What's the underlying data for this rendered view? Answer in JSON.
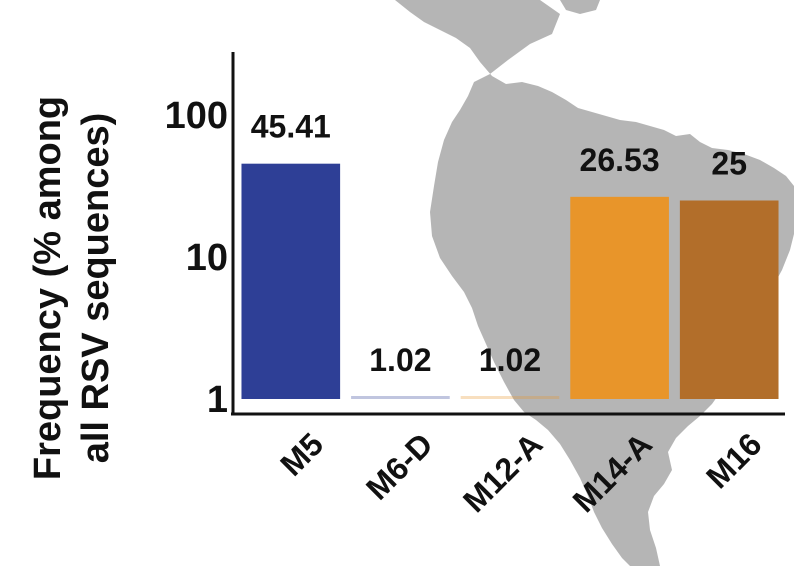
{
  "chart_data": {
    "type": "bar",
    "title": "",
    "xlabel": "",
    "ylabel_lines": [
      "Frequency (% among",
      "all RSV sequences)"
    ],
    "yscale": "log",
    "ylim": [
      1,
      250
    ],
    "yticks": [
      {
        "value": 1,
        "label": "1"
      },
      {
        "value": 10,
        "label": "10"
      },
      {
        "value": 100,
        "label": "100"
      }
    ],
    "categories": [
      "M5",
      "M6-D",
      "M12-A",
      "M14-A",
      "M16"
    ],
    "values": [
      45.41,
      1.02,
      1.02,
      26.53,
      25
    ],
    "value_labels": [
      "45.41",
      "1.02",
      "1.02",
      "26.53",
      "25"
    ],
    "colors": [
      "#2E3F96",
      "#2E3F96",
      "#E8952A",
      "#E8952A",
      "#B26E2A"
    ],
    "grid": false,
    "legend": "none"
  },
  "background": {
    "map_icon": "south-america-map-silhouette",
    "map_color": "#A8A8A8"
  }
}
